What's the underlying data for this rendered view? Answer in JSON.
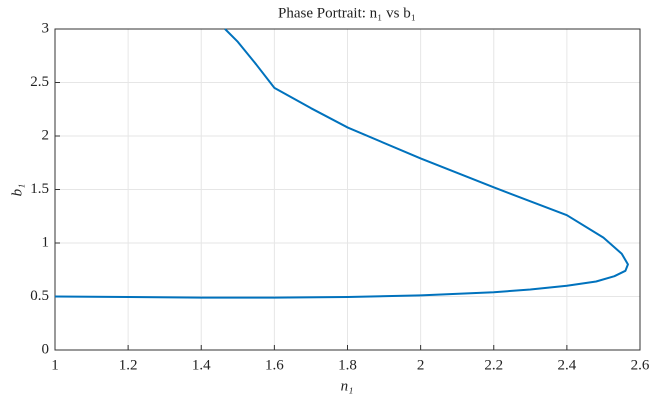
{
  "chart_data": {
    "type": "line",
    "title": "Phase Portrait: n₁ vs b₁",
    "xlabel": "n₁",
    "ylabel": "b₁",
    "x": [
      1.0,
      1.2,
      1.4,
      1.6,
      1.8,
      2.0,
      2.2,
      2.3,
      2.4,
      2.48,
      2.53,
      2.56,
      2.567,
      2.55,
      2.5,
      2.4,
      2.2,
      2.0,
      1.8,
      1.7,
      1.6,
      1.55,
      1.5,
      1.465
    ],
    "series": [
      {
        "name": "b₁",
        "color": "#0072bd",
        "values": [
          0.5,
          0.495,
          0.49,
          0.49,
          0.495,
          0.51,
          0.54,
          0.565,
          0.6,
          0.64,
          0.69,
          0.74,
          0.8,
          0.9,
          1.05,
          1.26,
          1.52,
          1.79,
          2.08,
          2.26,
          2.45,
          2.67,
          2.88,
          3.0
        ]
      }
    ],
    "xlim": [
      1,
      2.6
    ],
    "ylim": [
      0,
      3
    ],
    "xticks": [
      1,
      1.2,
      1.4,
      1.6,
      1.8,
      2,
      2.2,
      2.4,
      2.6
    ],
    "yticks": [
      0,
      0.5,
      1,
      1.5,
      2,
      2.5,
      3
    ],
    "grid": true
  }
}
